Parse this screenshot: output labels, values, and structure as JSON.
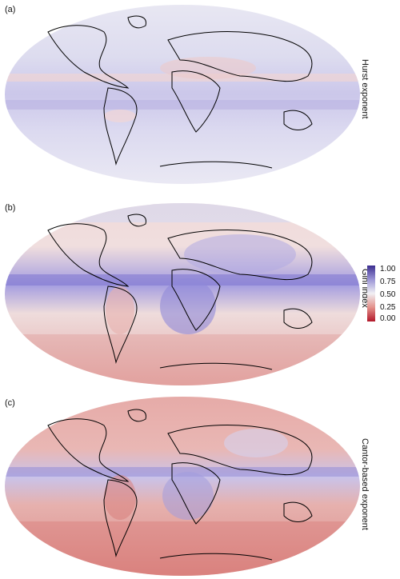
{
  "panels": [
    {
      "label": "(a)",
      "side_label": "Hurst exponent"
    },
    {
      "label": "(b)",
      "side_label": "Gini index"
    },
    {
      "label": "(c)",
      "side_label": "Cantor-based exponent"
    }
  ],
  "colorbar": {
    "ticks": [
      "1.00",
      "0.75",
      "0.50",
      "0.25",
      "0.00"
    ],
    "colors": {
      "high": "#3b2d8f",
      "mid_high": "#9b95d6",
      "mid": "#f1f0f4",
      "mid_low": "#e3908a",
      "low": "#b2182b"
    }
  }
}
